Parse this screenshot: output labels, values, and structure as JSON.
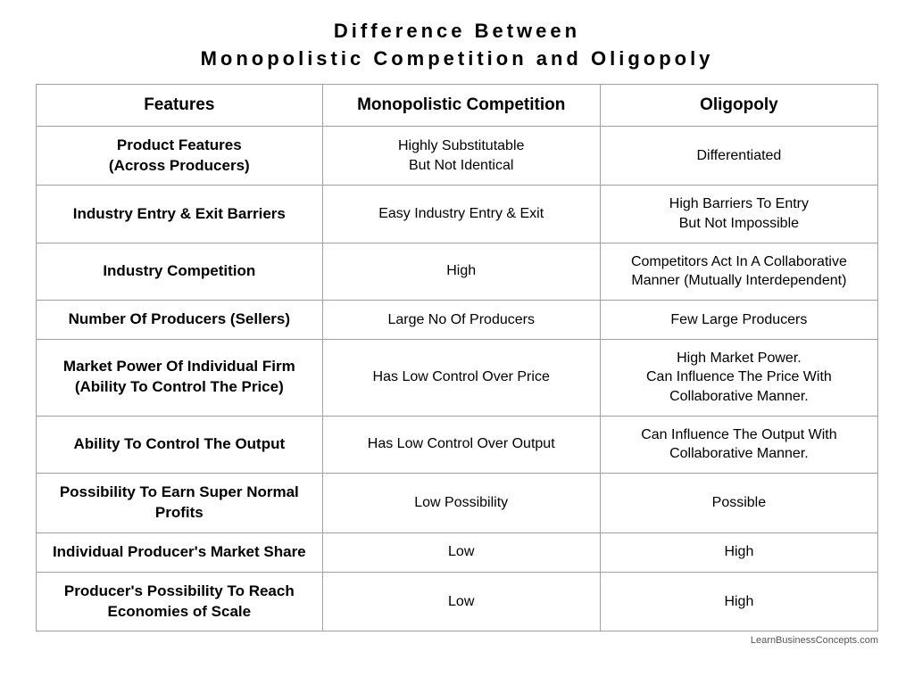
{
  "title_line1": "Difference Between",
  "title_line2": "Monopolistic Competition and Oligopoly",
  "table": {
    "columns": [
      "Features",
      "Monopolistic Competition",
      "Oligopoly"
    ],
    "column_widths_pct": [
      34,
      33,
      33
    ],
    "header_fontsize": 19,
    "header_fontweight": 700,
    "feature_fontsize": 17,
    "feature_fontweight": 700,
    "value_fontsize": 16,
    "value_fontweight": 400,
    "border_color": "#a0a0a0",
    "text_color": "#000000",
    "rows": [
      {
        "feature": "Product Features\n(Across Producers)",
        "col1": "Highly Substitutable\nBut Not Identical",
        "col2": "Differentiated"
      },
      {
        "feature": "Industry Entry & Exit Barriers",
        "col1": "Easy Industry Entry & Exit",
        "col2": "High Barriers To Entry\nBut Not Impossible"
      },
      {
        "feature": "Industry Competition",
        "col1": "High",
        "col2": "Competitors Act In A Collaborative\nManner (Mutually Interdependent)"
      },
      {
        "feature": "Number Of Producers (Sellers)",
        "col1": "Large No Of Producers",
        "col2": "Few Large Producers"
      },
      {
        "feature": "Market Power Of Individual Firm\n(Ability To Control The Price)",
        "col1": "Has Low Control Over Price",
        "col2": "High Market Power.\nCan Influence The Price With\nCollaborative Manner."
      },
      {
        "feature": "Ability To Control The Output",
        "col1": "Has Low Control Over Output",
        "col2": "Can Influence The Output With\nCollaborative Manner."
      },
      {
        "feature": "Possibility To Earn Super Normal Profits",
        "col1": "Low Possibility",
        "col2": "Possible"
      },
      {
        "feature": "Individual Producer's Market Share",
        "col1": "Low",
        "col2": "High"
      },
      {
        "feature": "Producer's Possibility To Reach Economies of Scale",
        "col1": "Low",
        "col2": "High"
      }
    ]
  },
  "title_fontsize": 22,
  "title_letter_spacing": 4,
  "title_fontweight": 700,
  "background_color": "#ffffff",
  "footer_text": "LearnBusinessConcepts.com",
  "footer_fontsize": 11,
  "footer_color": "#555555"
}
